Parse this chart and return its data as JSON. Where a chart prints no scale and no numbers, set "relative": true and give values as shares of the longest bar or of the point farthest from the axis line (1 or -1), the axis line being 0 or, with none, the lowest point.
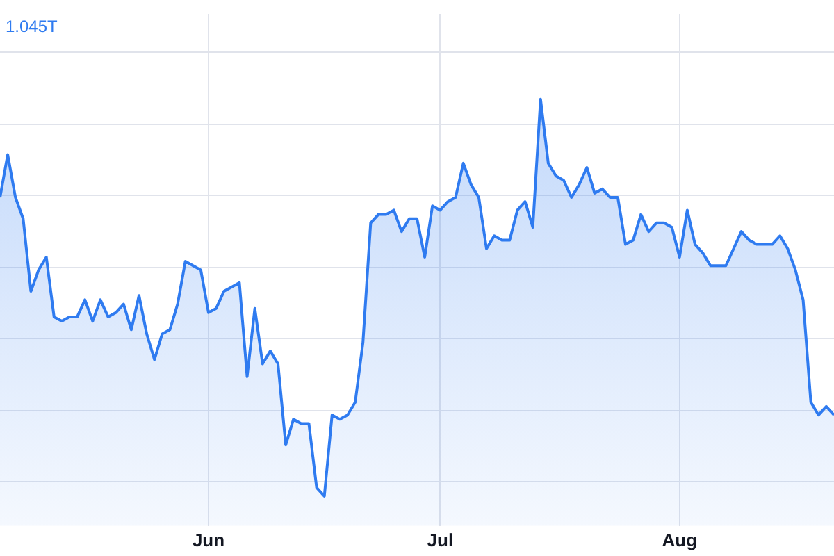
{
  "chart_data": {
    "type": "area",
    "relative": true,
    "grid": true,
    "annotations": [
      "1.045T"
    ],
    "xlim": [
      "--05-05",
      "--08-21"
    ],
    "xticks": [
      {
        "value": "--06-01",
        "label": "Jun"
      },
      {
        "value": "--07-01",
        "label": "Jul"
      },
      {
        "value": "--08-01",
        "label": "Aug"
      }
    ],
    "x": [
      "--05-05",
      "--05-06",
      "--05-07",
      "--05-08",
      "--05-09",
      "--05-10",
      "--05-11",
      "--05-12",
      "--05-13",
      "--05-14",
      "--05-15",
      "--05-16",
      "--05-17",
      "--05-18",
      "--05-19",
      "--05-20",
      "--05-21",
      "--05-22",
      "--05-23",
      "--05-24",
      "--05-25",
      "--05-26",
      "--05-27",
      "--05-28",
      "--05-29",
      "--05-30",
      "--05-31",
      "--06-01",
      "--06-02",
      "--06-03",
      "--06-04",
      "--06-05",
      "--06-06",
      "--06-07",
      "--06-08",
      "--06-09",
      "--06-10",
      "--06-11",
      "--06-12",
      "--06-13",
      "--06-14",
      "--06-15",
      "--06-16",
      "--06-17",
      "--06-18",
      "--06-19",
      "--06-20",
      "--06-21",
      "--06-22",
      "--06-23",
      "--06-24",
      "--06-25",
      "--06-26",
      "--06-27",
      "--06-28",
      "--06-29",
      "--06-30",
      "--07-01",
      "--07-02",
      "--07-03",
      "--07-04",
      "--07-05",
      "--07-06",
      "--07-07",
      "--07-08",
      "--07-09",
      "--07-10",
      "--07-11",
      "--07-12",
      "--07-13",
      "--07-14",
      "--07-15",
      "--07-16",
      "--07-17",
      "--07-18",
      "--07-19",
      "--07-20",
      "--07-21",
      "--07-22",
      "--07-23",
      "--07-24",
      "--07-25",
      "--07-26",
      "--07-27",
      "--07-28",
      "--07-29",
      "--07-30",
      "--07-31",
      "--08-01",
      "--08-02",
      "--08-03",
      "--08-04",
      "--08-05",
      "--08-06",
      "--08-07",
      "--08-08",
      "--08-09",
      "--08-10",
      "--08-11",
      "--08-12",
      "--08-13",
      "--08-14",
      "--08-15",
      "--08-16",
      "--08-17",
      "--08-18",
      "--08-19",
      "--08-20",
      "--08-21"
    ],
    "series": [
      {
        "color": "#2f7bf0",
        "values": [
          0.77,
          0.87,
          0.77,
          0.72,
          0.55,
          0.6,
          0.63,
          0.49,
          0.48,
          0.49,
          0.49,
          0.53,
          0.48,
          0.53,
          0.49,
          0.5,
          0.52,
          0.46,
          0.54,
          0.45,
          0.39,
          0.45,
          0.46,
          0.52,
          0.62,
          0.61,
          0.6,
          0.5,
          0.51,
          0.55,
          0.56,
          0.57,
          0.35,
          0.51,
          0.38,
          0.41,
          0.38,
          0.19,
          0.25,
          0.24,
          0.24,
          0.09,
          0.07,
          0.26,
          0.25,
          0.26,
          0.29,
          0.43,
          0.71,
          0.73,
          0.73,
          0.74,
          0.69,
          0.72,
          0.72,
          0.63,
          0.75,
          0.74,
          0.76,
          0.77,
          0.85,
          0.8,
          0.77,
          0.65,
          0.68,
          0.67,
          0.67,
          0.74,
          0.76,
          0.7,
          1,
          0.85,
          0.82,
          0.81,
          0.77,
          0.8,
          0.84,
          0.78,
          0.79,
          0.77,
          0.77,
          0.66,
          0.67,
          0.73,
          0.69,
          0.71,
          0.71,
          0.7,
          0.63,
          0.74,
          0.66,
          0.64,
          0.61,
          0.61,
          0.61,
          0.65,
          0.69,
          0.67,
          0.66,
          0.66,
          0.66,
          0.68,
          0.65,
          0.6,
          0.53,
          0.29,
          0.26,
          0.28,
          0.26
        ]
      }
    ]
  }
}
